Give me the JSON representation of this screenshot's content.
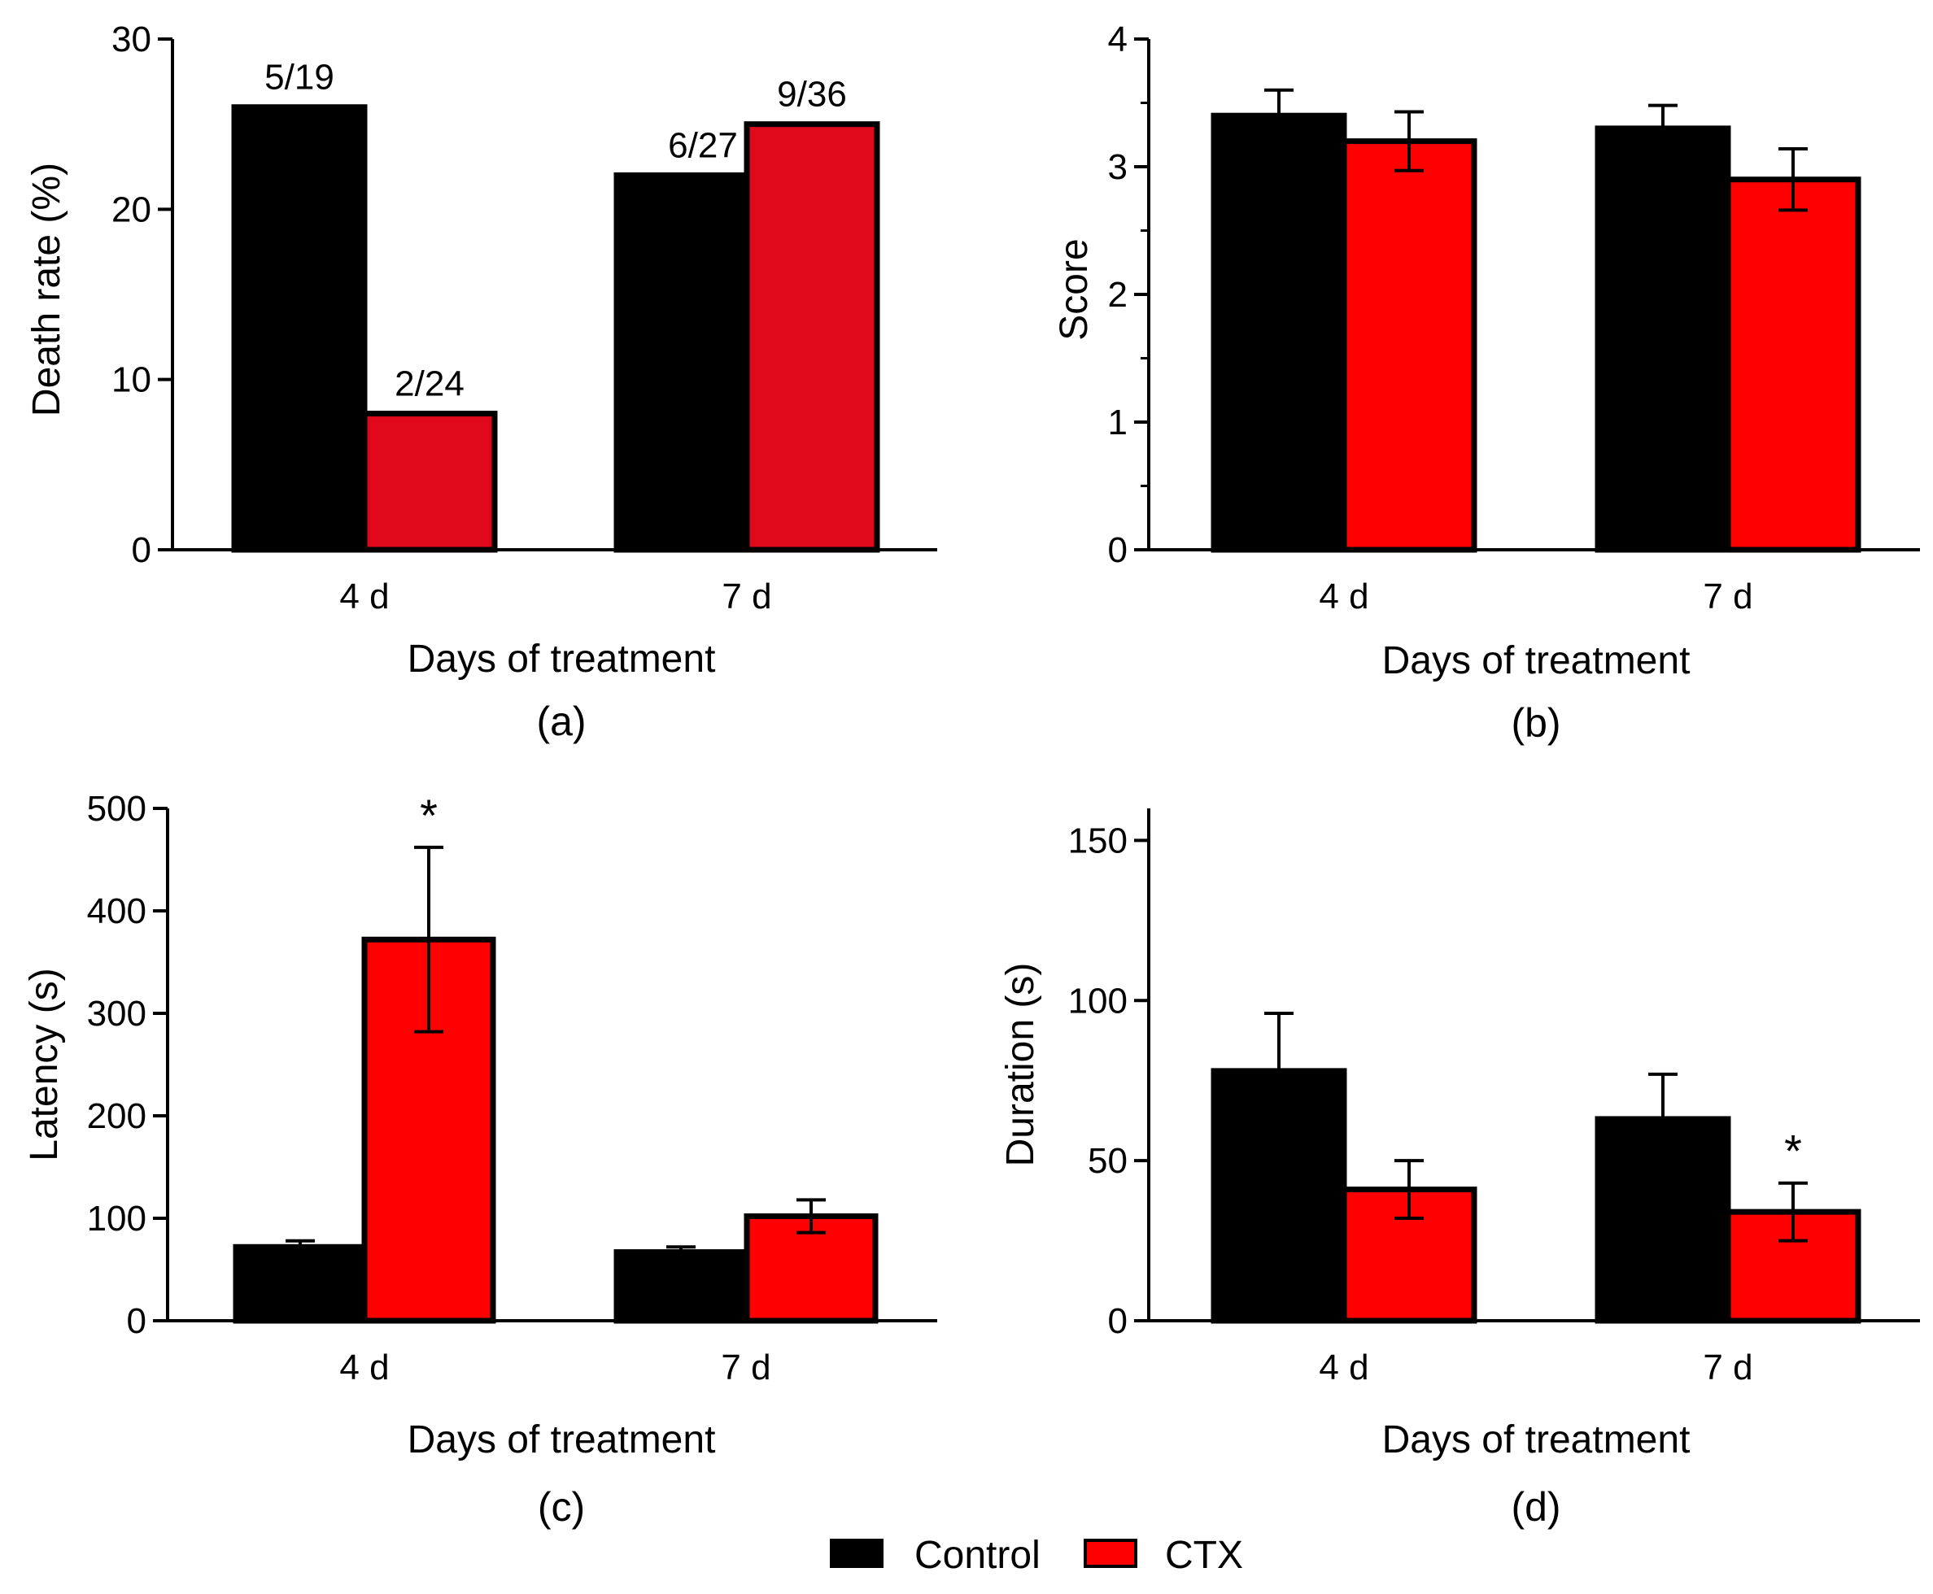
{
  "chart_data": [
    {
      "type": "bar",
      "panel_label": "(a)",
      "xlabel": "Days of treatment",
      "ylabel": "Death rate (%)",
      "categories": [
        "4 d",
        "7 d"
      ],
      "ylim": [
        0,
        30
      ],
      "yticks": [
        0,
        10,
        20,
        30
      ],
      "series": [
        {
          "name": "Control",
          "color": "#000000",
          "values": [
            26,
            22
          ],
          "labels": [
            "5/19",
            "6/27"
          ]
        },
        {
          "name": "CTX",
          "color": "#e0081b",
          "values": [
            8,
            25
          ],
          "labels": [
            "2/24",
            "9/36"
          ]
        }
      ]
    },
    {
      "type": "bar",
      "panel_label": "(b)",
      "xlabel": "Days of treatment",
      "ylabel": "Score",
      "categories": [
        "4 d",
        "7 d"
      ],
      "ylim": [
        0,
        4
      ],
      "yticks": [
        0,
        1,
        2,
        3,
        4
      ],
      "minor_ticks": true,
      "series": [
        {
          "name": "Control",
          "color": "#000000",
          "values": [
            3.4,
            3.3
          ],
          "errors": [
            0.2,
            0.18
          ]
        },
        {
          "name": "CTX",
          "color": "#ff0000",
          "values": [
            3.2,
            2.9
          ],
          "errors": [
            0.23,
            0.24
          ]
        }
      ]
    },
    {
      "type": "bar",
      "panel_label": "(c)",
      "xlabel": "Days of treatment",
      "ylabel": "Latency (s)",
      "categories": [
        "4 d",
        "7 d"
      ],
      "ylim": [
        0,
        500
      ],
      "yticks": [
        0,
        100,
        200,
        300,
        400,
        500
      ],
      "series": [
        {
          "name": "Control",
          "color": "#000000",
          "values": [
            72,
            67
          ],
          "errors": [
            6,
            5
          ]
        },
        {
          "name": "CTX",
          "color": "#ff0000",
          "values": [
            372,
            102
          ],
          "errors": [
            90,
            16
          ],
          "significance": [
            "*",
            ""
          ]
        }
      ]
    },
    {
      "type": "bar",
      "panel_label": "(d)",
      "xlabel": "Days of treatment",
      "ylabel": "Duration (s)",
      "categories": [
        "4 d",
        "7 d"
      ],
      "ylim": [
        0,
        160
      ],
      "yticks": [
        0,
        50,
        100,
        150
      ],
      "series": [
        {
          "name": "Control",
          "color": "#000000",
          "values": [
            78,
            63
          ],
          "errors": [
            18,
            14
          ]
        },
        {
          "name": "CTX",
          "color": "#ff0000",
          "values": [
            41,
            34
          ],
          "errors": [
            9,
            9
          ],
          "significance": [
            "",
            "*"
          ]
        }
      ]
    }
  ],
  "legend": {
    "position": "bottom-center",
    "items": [
      {
        "label": "Control",
        "color": "#000000"
      },
      {
        "label": "CTX",
        "color": "#ff0000"
      }
    ]
  }
}
